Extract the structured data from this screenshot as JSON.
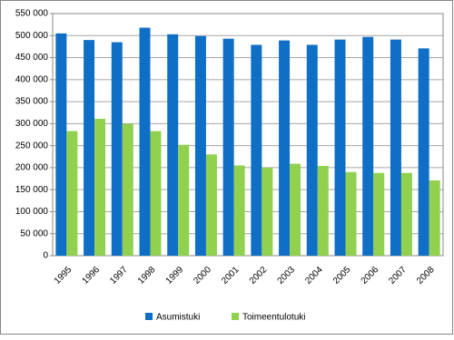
{
  "chart_data": {
    "type": "bar",
    "categories": [
      "1995",
      "1996",
      "1997",
      "1998",
      "1999",
      "2000",
      "2001",
      "2002",
      "2003",
      "2004",
      "2005",
      "2006",
      "2007",
      "2008"
    ],
    "series": [
      {
        "name": "Asumistuki",
        "color": "#0f6fc6",
        "values": [
          505000,
          490000,
          485000,
          518000,
          503000,
          499000,
          493000,
          479000,
          489000,
          479000,
          491000,
          497000,
          491000,
          471000
        ]
      },
      {
        "name": "Toimeentulotuki",
        "color": "#92d050",
        "values": [
          283000,
          311000,
          300000,
          283000,
          252000,
          230000,
          205000,
          200000,
          209000,
          204000,
          190000,
          188000,
          188000,
          171000
        ]
      }
    ],
    "ylim": [
      0,
      550000
    ],
    "yticks": [
      0,
      {
        "value": 50000,
        "label": "50 000"
      },
      {
        "value": 100000,
        "label": "100 000"
      },
      {
        "value": 150000,
        "label": "150 000"
      },
      {
        "value": 200000,
        "label": "200 000"
      },
      {
        "value": 250000,
        "label": "250 000"
      },
      {
        "value": 300000,
        "label": "300 000"
      },
      {
        "value": 350000,
        "label": "350 000"
      },
      {
        "value": 400000,
        "label": "400 000"
      },
      {
        "value": 450000,
        "label": "450 000"
      },
      {
        "value": 500000,
        "label": "500 000"
      },
      {
        "value": 550000,
        "label": "550 000"
      }
    ],
    "grid": true,
    "legend": "bottom"
  }
}
